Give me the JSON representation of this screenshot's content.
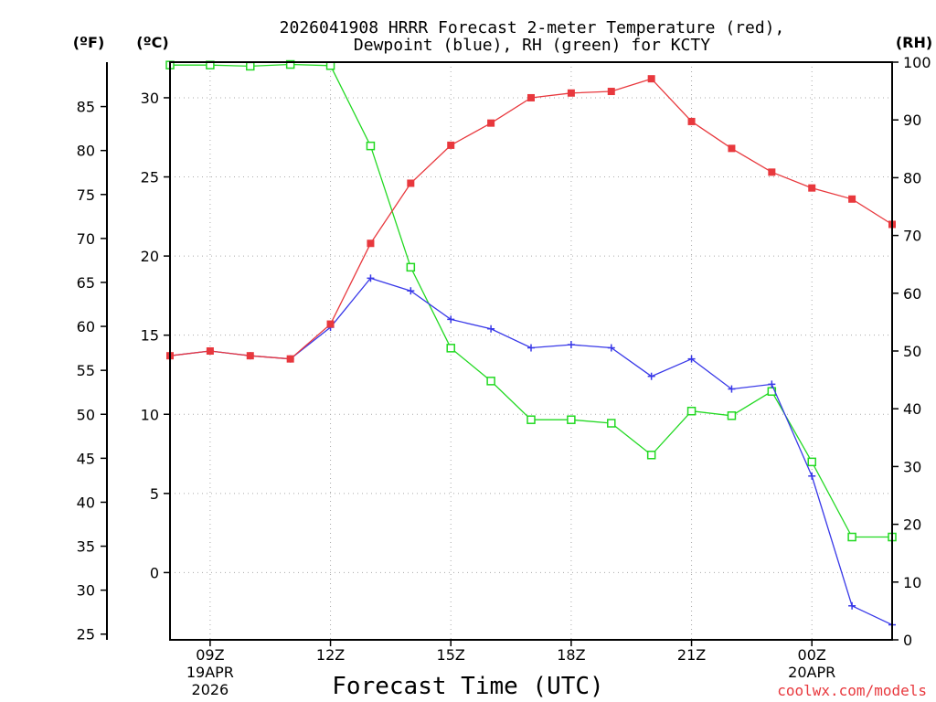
{
  "chart_data": {
    "type": "line",
    "title_line1": "2026041908 HRRR Forecast 2-meter Temperature (red),",
    "title_line2": "Dewpoint (blue), RH (green) for KCTY",
    "xlabel": "Forecast Time (UTC)",
    "credit": "coolwx.com/models",
    "units": {
      "fahrenheit": "(ºF)",
      "celsius": "(ºC)",
      "rh": "(RH)"
    },
    "x_ticks": [
      {
        "hour": 1,
        "line1": "09Z",
        "line2": "19APR",
        "line3": "2026"
      },
      {
        "hour": 4,
        "line1": "12Z",
        "line2": "",
        "line3": ""
      },
      {
        "hour": 7,
        "line1": "15Z",
        "line2": "",
        "line3": ""
      },
      {
        "hour": 10,
        "line1": "18Z",
        "line2": "",
        "line3": ""
      },
      {
        "hour": 13,
        "line1": "21Z",
        "line2": "",
        "line3": ""
      },
      {
        "hour": 16,
        "line1": "00Z",
        "line2": "20APR",
        "line3": ""
      }
    ],
    "x_range": [
      0,
      18
    ],
    "celsius_range": [
      -4.25,
      32.25
    ],
    "celsius_ticks": [
      "0",
      "5",
      "10",
      "15",
      "20",
      "25",
      "30"
    ],
    "fahrenheit_ticks": [
      "25",
      "30",
      "35",
      "40",
      "45",
      "50",
      "55",
      "60",
      "65",
      "70",
      "75",
      "80",
      "85"
    ],
    "rh_range": [
      0,
      100
    ],
    "rh_ticks": [
      "0",
      "10",
      "20",
      "30",
      "40",
      "50",
      "60",
      "70",
      "80",
      "90",
      "100"
    ],
    "series": [
      {
        "name": "Temperature",
        "axis": "celsius",
        "color": "#e8383d",
        "marker": "filled-square",
        "x": [
          0,
          1,
          2,
          3,
          4,
          5,
          6,
          7,
          8,
          9,
          10,
          11,
          12,
          13,
          14,
          15,
          16,
          17,
          18
        ],
        "values": [
          13.7,
          14.0,
          13.7,
          13.5,
          15.7,
          20.8,
          24.6,
          27.0,
          28.4,
          30.0,
          30.3,
          30.4,
          31.2,
          28.5,
          26.8,
          25.3,
          24.3,
          23.6,
          22.0
        ]
      },
      {
        "name": "Dewpoint",
        "axis": "celsius",
        "color": "#3838e8",
        "marker": "plus",
        "x": [
          0,
          1,
          2,
          3,
          4,
          5,
          6,
          7,
          8,
          9,
          10,
          11,
          12,
          13,
          14,
          15,
          16,
          17,
          18
        ],
        "values": [
          13.7,
          14.0,
          13.7,
          13.5,
          15.5,
          18.6,
          17.8,
          16.0,
          15.4,
          14.2,
          14.4,
          14.2,
          12.4,
          13.5,
          11.6,
          11.9,
          6.1,
          -2.1,
          -3.3
        ]
      },
      {
        "name": "RH",
        "axis": "rh",
        "color": "#22d922",
        "marker": "open-square",
        "x": [
          0,
          1,
          2,
          3,
          4,
          5,
          6,
          7,
          8,
          9,
          10,
          11,
          12,
          13,
          14,
          15,
          16,
          17,
          18
        ],
        "values": [
          99.5,
          99.5,
          99.3,
          99.6,
          99.4,
          85.5,
          64.5,
          50.5,
          44.8,
          38.1,
          38.1,
          37.5,
          32.0,
          39.6,
          38.8,
          43.0,
          30.8,
          17.8,
          17.8
        ]
      }
    ]
  }
}
